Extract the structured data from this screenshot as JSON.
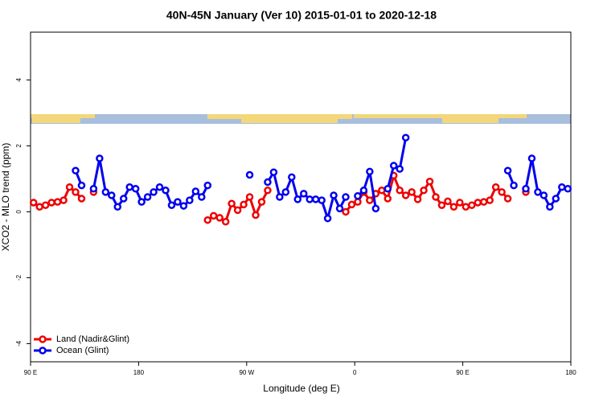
{
  "chart_data": {
    "type": "line",
    "title": "40N-45N January (Ver 10)   2015-01-01 to 2020-12-18",
    "x_label": "Longitude (deg E)",
    "y_label": "XCO2 - MLO trend (ppm)",
    "x": [
      92.5,
      97.5,
      102.5,
      107.5,
      112.5,
      117.5,
      122.5,
      127.5,
      132.5,
      137.5,
      142.5,
      147.5,
      152.5,
      157.5,
      162.5,
      167.5,
      172.5,
      177.5,
      182.5,
      187.5,
      192.5,
      197.5,
      202.5,
      207.5,
      212.5,
      217.5,
      222.5,
      227.5,
      232.5,
      237.5,
      242.5,
      247.5,
      252.5,
      257.5,
      262.5,
      267.5,
      272.5,
      277.5,
      282.5,
      287.5,
      292.5,
      297.5,
      302.5,
      307.5,
      312.5,
      317.5,
      322.5,
      327.5,
      332.5,
      337.5,
      342.5,
      347.5,
      352.5,
      357.5,
      362.5,
      367.5,
      372.5,
      377.5,
      382.5,
      387.5,
      392.5,
      397.5,
      402.5,
      407.5,
      412.5,
      417.5,
      422.5,
      427.5,
      432.5,
      437.5,
      442.5,
      447.5,
      452.5,
      457.5,
      462.5,
      467.5,
      472.5,
      477.5,
      482.5,
      487.5,
      492.5,
      497.5,
      502.5,
      507.5,
      512.5,
      517.5,
      522.5,
      527.5,
      532.5,
      537.5
    ],
    "series": [
      {
        "name": "Land (Nadir&Glint)",
        "color": "#ee0000",
        "values": [
          0.28,
          0.15,
          0.2,
          0.28,
          0.3,
          0.35,
          0.75,
          0.6,
          0.4,
          null,
          0.6,
          null,
          null,
          null,
          null,
          null,
          null,
          null,
          null,
          null,
          null,
          null,
          null,
          null,
          null,
          null,
          null,
          null,
          null,
          -0.25,
          -0.12,
          -0.18,
          -0.3,
          0.25,
          0.05,
          0.22,
          0.45,
          -0.1,
          0.3,
          0.65,
          null,
          null,
          null,
          null,
          null,
          null,
          null,
          null,
          null,
          null,
          null,
          null,
          0.0,
          0.22,
          0.3,
          0.6,
          0.35,
          0.55,
          0.65,
          0.4,
          1.1,
          0.65,
          0.5,
          0.6,
          0.38,
          0.65,
          0.92,
          0.45,
          0.2,
          0.32,
          0.15,
          0.28,
          0.15,
          0.2,
          0.28,
          0.3,
          0.35,
          0.75,
          0.6,
          0.4,
          null,
          null,
          0.6,
          null,
          null,
          null,
          null,
          null,
          null,
          null
        ]
      },
      {
        "name": "Ocean (Glint)",
        "color": "#0000ee",
        "values": [
          null,
          null,
          null,
          null,
          null,
          null,
          null,
          1.25,
          0.8,
          null,
          0.7,
          1.62,
          0.6,
          0.5,
          0.15,
          0.4,
          0.75,
          0.7,
          0.3,
          0.45,
          0.6,
          0.75,
          0.65,
          0.2,
          0.3,
          0.18,
          0.35,
          0.62,
          0.45,
          0.8,
          null,
          null,
          null,
          null,
          null,
          null,
          1.12,
          null,
          null,
          0.9,
          1.2,
          0.45,
          0.6,
          1.05,
          0.38,
          0.55,
          0.38,
          0.38,
          0.35,
          -0.2,
          0.5,
          0.1,
          0.45,
          null,
          0.48,
          0.65,
          1.22,
          0.1,
          null,
          0.7,
          1.4,
          1.3,
          2.25,
          null,
          null,
          null,
          null,
          null,
          null,
          null,
          null,
          null,
          null,
          null,
          null,
          null,
          null,
          null,
          null,
          1.25,
          0.8,
          null,
          0.7,
          1.62,
          0.6,
          0.5,
          0.15,
          0.4,
          0.75,
          0.7
        ]
      }
    ],
    "xlim": [
      90,
      540
    ],
    "xticks": [
      {
        "value": 90,
        "label": "90 E"
      },
      180,
      {
        "value": 270,
        "label": "90 W"
      },
      {
        "value": 360,
        "label": "0"
      },
      {
        "value": 450,
        "label": "90 E"
      },
      {
        "value": 540,
        "label": "180"
      }
    ],
    "ylim": [
      -4.55,
      5.45
    ],
    "yticks": [
      -4,
      -2,
      0,
      2,
      4
    ],
    "legend": "bottomleft"
  }
}
